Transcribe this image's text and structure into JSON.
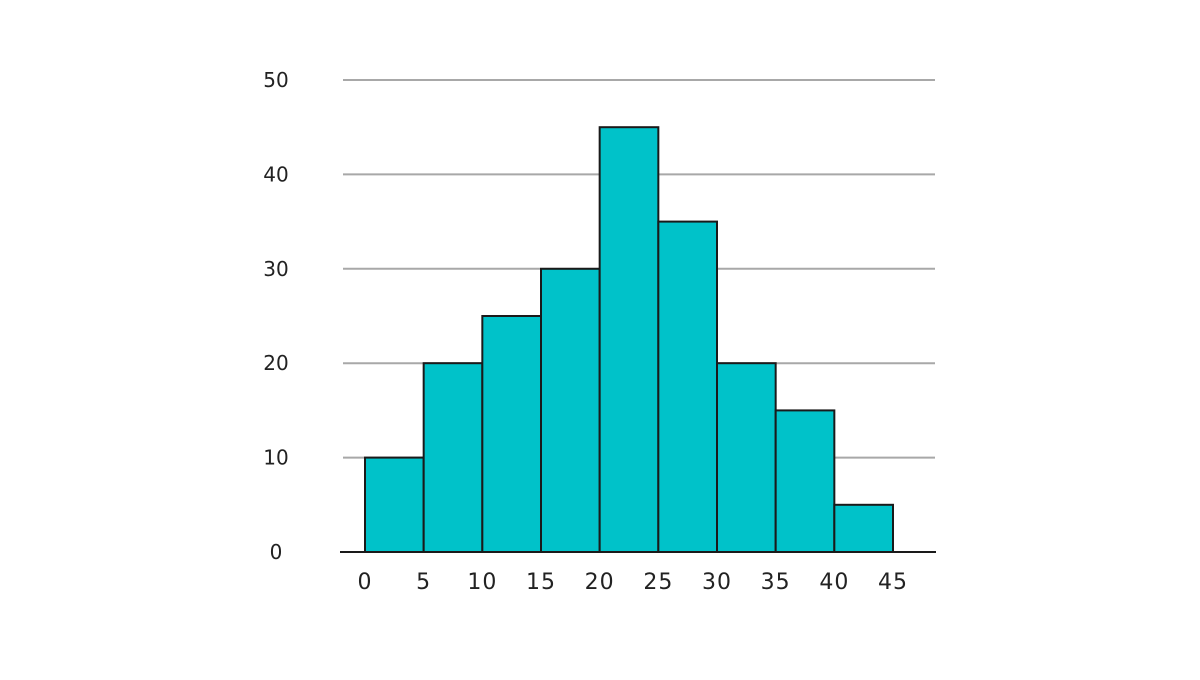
{
  "chart_data": {
    "type": "bar",
    "subtype": "histogram",
    "title": "",
    "xlabel": "",
    "ylabel": "",
    "bin_edges": [
      0,
      5,
      10,
      15,
      20,
      25,
      30,
      35,
      40,
      45
    ],
    "x_tick_labels": [
      "0",
      "5",
      "10",
      "15",
      "20",
      "25",
      "30",
      "35",
      "40",
      "45"
    ],
    "values": [
      10,
      20,
      25,
      30,
      45,
      35,
      20,
      15,
      5
    ],
    "ylim": [
      0,
      50
    ],
    "y_ticks": [
      0,
      10,
      20,
      30,
      40,
      50
    ],
    "y_tick_labels": [
      "0",
      "10",
      "20",
      "30",
      "40",
      "50"
    ],
    "grid": true,
    "legend": "none",
    "colors": {
      "bar_fill": "#00c2c9",
      "bar_stroke": "#1a1a1a",
      "grid": "#a8a8a8",
      "axis": "#1a1a1a"
    }
  }
}
